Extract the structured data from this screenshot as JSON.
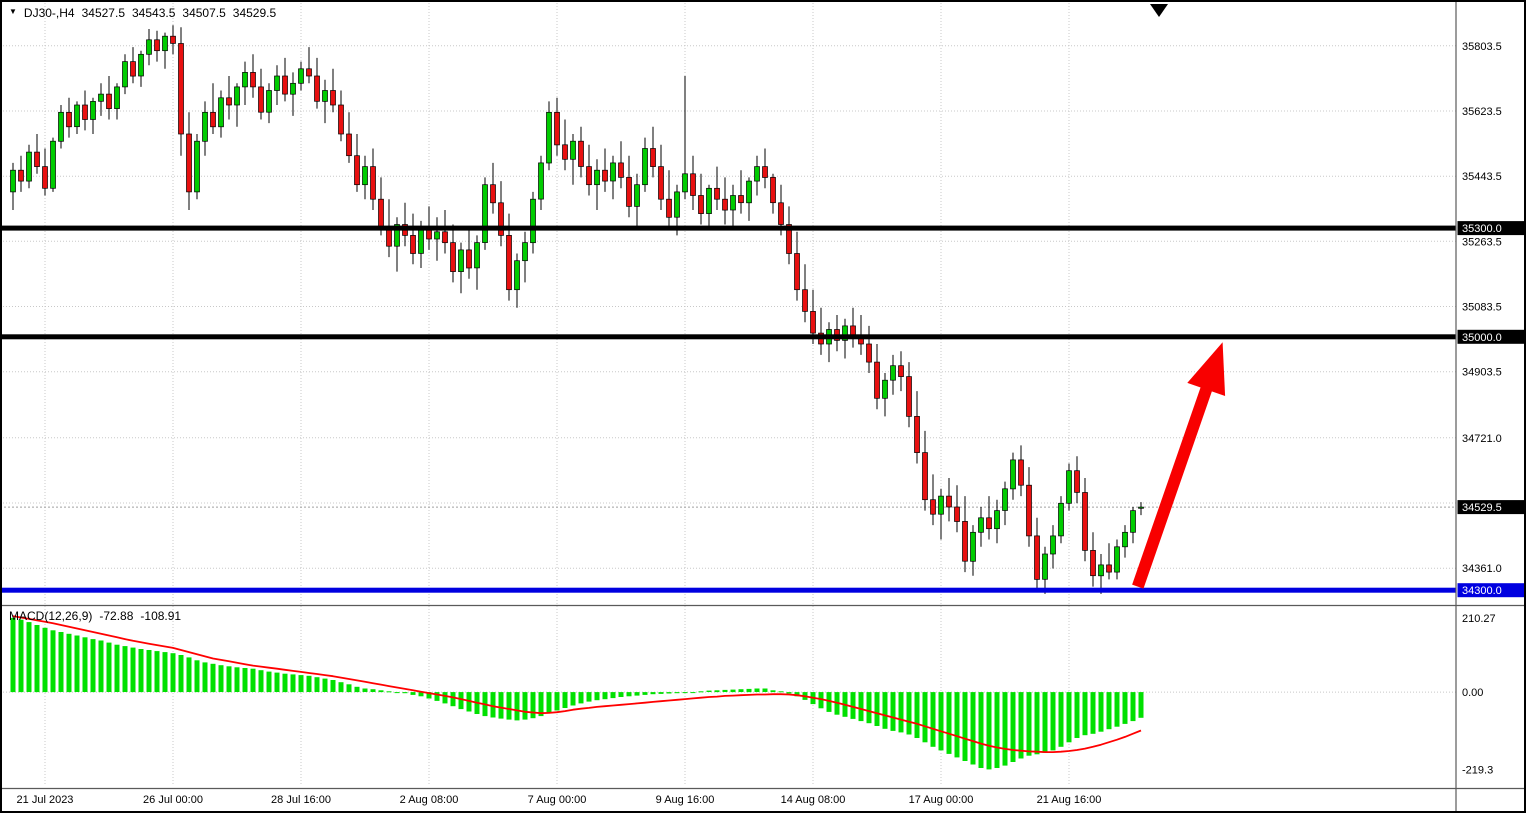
{
  "header": {
    "symbol_period": "DJ30-,H4",
    "open": "34527.5",
    "high": "34543.5",
    "low": "34507.5",
    "close": "34529.5"
  },
  "macd_header": {
    "label": "MACD(12,26,9)",
    "main_value": "-72.88",
    "signal_value": "-108.91"
  },
  "colors": {
    "up": "#00CC00",
    "down": "#E81010",
    "wick": "#000000",
    "grid": "#C8C8C8",
    "macd_bar": "#00E000",
    "macd_signal": "#FF0000",
    "arrow": "#F80000",
    "level_black": "#000000",
    "level_blue": "#0000E0",
    "current_line": "#A0A0A0",
    "badge_bg": "#000000",
    "badge_text": "#FFFFFF"
  },
  "chart_data": {
    "type": "candlestick",
    "symbol": "DJ30-",
    "timeframe": "H4",
    "title": "DJ30-,H4",
    "grid": true,
    "price_axis": {
      "range_top": 35930,
      "range_bottom": 34262,
      "ticks": [
        {
          "value": 35803.5,
          "label": "35803.5"
        },
        {
          "value": 35623.5,
          "label": "35623.5"
        },
        {
          "value": 35443.5,
          "label": "35443.5"
        },
        {
          "value": 35263.5,
          "label": "35263.5"
        },
        {
          "value": 35083.5,
          "label": "35083.5"
        },
        {
          "value": 34903.5,
          "label": "34903.5"
        },
        {
          "value": 34721.0,
          "label": "34721.0"
        },
        {
          "value": 34541.0,
          "label": ""
        },
        {
          "value": 34361.0,
          "label": "34361.0"
        }
      ]
    },
    "current_price": {
      "value": 34529.5,
      "label": "34529.5"
    },
    "levels": [
      {
        "price": 35300.0,
        "label": "35300.0",
        "color": "#000000",
        "width": 5
      },
      {
        "price": 35000.0,
        "label": "35000.0",
        "color": "#000000",
        "width": 5
      },
      {
        "price": 34300.0,
        "label": "34300.0",
        "color": "#0000E0",
        "width": 5
      }
    ],
    "time_axis": {
      "labels": [
        {
          "index": 4,
          "label": "21 Jul 2023"
        },
        {
          "index": 20,
          "label": "26 Jul 00:00"
        },
        {
          "index": 36,
          "label": "28 Jul 16:00"
        },
        {
          "index": 52,
          "label": "2 Aug 08:00"
        },
        {
          "index": 68,
          "label": "7 Aug 00:00"
        },
        {
          "index": 84,
          "label": "9 Aug 16:00"
        },
        {
          "index": 100,
          "label": "14 Aug 08:00"
        },
        {
          "index": 116,
          "label": "17 Aug 00:00"
        },
        {
          "index": 132,
          "label": "21 Aug 16:00"
        }
      ]
    },
    "arrow_annotation": {
      "from_index": 140.6,
      "from_price": 34310,
      "to_index": 151.2,
      "to_price": 34985
    },
    "candles": [
      [
        35400,
        35480,
        35350,
        35460
      ],
      [
        35460,
        35500,
        35400,
        35430
      ],
      [
        35430,
        35530,
        35410,
        35510
      ],
      [
        35510,
        35560,
        35450,
        35470
      ],
      [
        35470,
        35520,
        35390,
        35410
      ],
      [
        35410,
        35550,
        35400,
        35540
      ],
      [
        35540,
        35640,
        35520,
        35620
      ],
      [
        35620,
        35660,
        35550,
        35580
      ],
      [
        35580,
        35650,
        35560,
        35640
      ],
      [
        35640,
        35680,
        35570,
        35600
      ],
      [
        35600,
        35660,
        35560,
        35650
      ],
      [
        35650,
        35700,
        35610,
        35670
      ],
      [
        35670,
        35720,
        35600,
        35630
      ],
      [
        35630,
        35700,
        35600,
        35690
      ],
      [
        35690,
        35780,
        35670,
        35760
      ],
      [
        35760,
        35800,
        35700,
        35720
      ],
      [
        35720,
        35790,
        35690,
        35780
      ],
      [
        35780,
        35850,
        35750,
        35820
      ],
      [
        35820,
        35845,
        35760,
        35790
      ],
      [
        35790,
        35840,
        35740,
        35830
      ],
      [
        35830,
        35860,
        35780,
        35810
      ],
      [
        35810,
        35855,
        35500,
        35560
      ],
      [
        35560,
        35620,
        35350,
        35400
      ],
      [
        35400,
        35560,
        35380,
        35540
      ],
      [
        35540,
        35650,
        35500,
        35620
      ],
      [
        35620,
        35700,
        35560,
        35580
      ],
      [
        35580,
        35680,
        35550,
        35660
      ],
      [
        35660,
        35720,
        35600,
        35640
      ],
      [
        35640,
        35700,
        35580,
        35690
      ],
      [
        35690,
        35760,
        35640,
        35730
      ],
      [
        35730,
        35780,
        35660,
        35690
      ],
      [
        35690,
        35740,
        35600,
        35620
      ],
      [
        35620,
        35700,
        35590,
        35680
      ],
      [
        35680,
        35750,
        35640,
        35720
      ],
      [
        35720,
        35770,
        35650,
        35670
      ],
      [
        35670,
        35730,
        35610,
        35700
      ],
      [
        35700,
        35760,
        35680,
        35740
      ],
      [
        35740,
        35800,
        35700,
        35720
      ],
      [
        35720,
        35770,
        35630,
        35650
      ],
      [
        35650,
        35710,
        35590,
        35680
      ],
      [
        35680,
        35740,
        35620,
        35640
      ],
      [
        35640,
        35680,
        35540,
        35560
      ],
      [
        35560,
        35620,
        35480,
        35500
      ],
      [
        35500,
        35560,
        35400,
        35420
      ],
      [
        35420,
        35500,
        35380,
        35470
      ],
      [
        35470,
        35520,
        35350,
        35380
      ],
      [
        35380,
        35440,
        35280,
        35300
      ],
      [
        35300,
        35380,
        35220,
        35250
      ],
      [
        35250,
        35330,
        35180,
        35310
      ],
      [
        35310,
        35370,
        35250,
        35280
      ],
      [
        35280,
        35340,
        35200,
        35230
      ],
      [
        35230,
        35320,
        35190,
        35300
      ],
      [
        35300,
        35360,
        35240,
        35270
      ],
      [
        35270,
        35330,
        35210,
        35290
      ],
      [
        35290,
        35350,
        35230,
        35260
      ],
      [
        35260,
        35310,
        35150,
        35180
      ],
      [
        35180,
        35260,
        35120,
        35240
      ],
      [
        35240,
        35300,
        35160,
        35190
      ],
      [
        35190,
        35280,
        35130,
        35260
      ],
      [
        35260,
        35440,
        35240,
        35420
      ],
      [
        35420,
        35480,
        35340,
        35370
      ],
      [
        35370,
        35430,
        35250,
        35280
      ],
      [
        35280,
        35340,
        35100,
        35130
      ],
      [
        35130,
        35230,
        35080,
        35210
      ],
      [
        35210,
        35290,
        35150,
        35260
      ],
      [
        35260,
        35400,
        35230,
        35380
      ],
      [
        35380,
        35500,
        35350,
        35480
      ],
      [
        35480,
        35650,
        35460,
        35620
      ],
      [
        35620,
        35660,
        35500,
        35530
      ],
      [
        35530,
        35600,
        35460,
        35490
      ],
      [
        35490,
        35560,
        35420,
        35540
      ],
      [
        35540,
        35580,
        35440,
        35470
      ],
      [
        35470,
        35530,
        35390,
        35420
      ],
      [
        35420,
        35490,
        35350,
        35460
      ],
      [
        35460,
        35520,
        35400,
        35430
      ],
      [
        35430,
        35500,
        35380,
        35480
      ],
      [
        35480,
        35540,
        35410,
        35440
      ],
      [
        35440,
        35500,
        35330,
        35360
      ],
      [
        35360,
        35450,
        35300,
        35420
      ],
      [
        35420,
        35550,
        35400,
        35520
      ],
      [
        35520,
        35580,
        35440,
        35470
      ],
      [
        35470,
        35530,
        35350,
        35380
      ],
      [
        35380,
        35460,
        35300,
        35330
      ],
      [
        35330,
        35420,
        35280,
        35400
      ],
      [
        35400,
        35720,
        35380,
        35450
      ],
      [
        35450,
        35500,
        35350,
        35390
      ],
      [
        35390,
        35450,
        35310,
        35340
      ],
      [
        35340,
        35420,
        35300,
        35410
      ],
      [
        35410,
        35470,
        35350,
        35380
      ],
      [
        35380,
        35440,
        35310,
        35350
      ],
      [
        35350,
        35420,
        35300,
        35390
      ],
      [
        35390,
        35460,
        35340,
        35370
      ],
      [
        35370,
        35440,
        35320,
        35430
      ],
      [
        35430,
        35500,
        35390,
        35470
      ],
      [
        35470,
        35520,
        35410,
        35440
      ],
      [
        35440,
        35450,
        35340,
        35370
      ],
      [
        35370,
        35420,
        35280,
        35310
      ],
      [
        35310,
        35360,
        35200,
        35230
      ],
      [
        35230,
        35290,
        35100,
        35130
      ],
      [
        35130,
        35200,
        35040,
        35070
      ],
      [
        35070,
        35130,
        34980,
        35010
      ],
      [
        35010,
        35080,
        34950,
        34980
      ],
      [
        34980,
        35040,
        34930,
        35020
      ],
      [
        35020,
        35060,
        34960,
        34990
      ],
      [
        34990,
        35050,
        34940,
        35030
      ],
      [
        35030,
        35080,
        34970,
        35000
      ],
      [
        35000,
        35060,
        34950,
        34980
      ],
      [
        34980,
        35030,
        34900,
        34930
      ],
      [
        34930,
        34980,
        34800,
        34830
      ],
      [
        34830,
        34900,
        34780,
        34880
      ],
      [
        34880,
        34950,
        34840,
        34920
      ],
      [
        34920,
        34960,
        34850,
        34890
      ],
      [
        34890,
        34930,
        34750,
        34780
      ],
      [
        34780,
        34850,
        34650,
        34680
      ],
      [
        34680,
        34740,
        34520,
        34550
      ],
      [
        34550,
        34620,
        34480,
        34510
      ],
      [
        34510,
        34580,
        34440,
        34560
      ],
      [
        34560,
        34610,
        34490,
        34530
      ],
      [
        34530,
        34590,
        34460,
        34490
      ],
      [
        34490,
        34560,
        34350,
        34380
      ],
      [
        34380,
        34480,
        34340,
        34460
      ],
      [
        34460,
        34530,
        34420,
        34500
      ],
      [
        34500,
        34560,
        34440,
        34470
      ],
      [
        34470,
        34550,
        34430,
        34520
      ],
      [
        34520,
        34600,
        34480,
        34580
      ],
      [
        34580,
        34680,
        34550,
        34660
      ],
      [
        34660,
        34700,
        34560,
        34590
      ],
      [
        34590,
        34640,
        34420,
        34450
      ],
      [
        34450,
        34500,
        34300,
        34330
      ],
      [
        34330,
        34420,
        34290,
        34400
      ],
      [
        34400,
        34480,
        34360,
        34450
      ],
      [
        34450,
        34560,
        34430,
        34540
      ],
      [
        34540,
        34650,
        34520,
        34630
      ],
      [
        34630,
        34670,
        34540,
        34570
      ],
      [
        34570,
        34610,
        34380,
        34410
      ],
      [
        34410,
        34460,
        34310,
        34340
      ],
      [
        34340,
        34400,
        34290,
        34370
      ],
      [
        34370,
        34430,
        34330,
        34350
      ],
      [
        34350,
        34440,
        34330,
        34420
      ],
      [
        34420,
        34480,
        34390,
        34460
      ],
      [
        34460,
        34530,
        34430,
        34520
      ],
      [
        34527.5,
        34543.5,
        34507.5,
        34529.5
      ]
    ],
    "macd": {
      "params": "12,26,9",
      "range_top": 238,
      "range_bottom": -266,
      "ticks": [
        {
          "value": 210.27,
          "label": "210.27"
        },
        {
          "value": 0,
          "label": "0.00"
        },
        {
          "value": -219.3,
          "label": "-219.3"
        }
      ],
      "histogram": [
        210,
        205,
        198,
        190,
        182,
        175,
        170,
        165,
        160,
        155,
        150,
        146,
        140,
        134,
        130,
        126,
        122,
        119,
        116,
        113,
        110,
        105,
        98,
        90,
        84,
        80,
        76,
        73,
        70,
        68,
        66,
        62,
        58,
        55,
        52,
        50,
        48,
        46,
        42,
        38,
        34,
        28,
        22,
        15,
        10,
        8,
        5,
        2,
        0,
        -3,
        -8,
        -12,
        -18,
        -25,
        -32,
        -40,
        -48,
        -55,
        -62,
        -68,
        -72,
        -75,
        -78,
        -80,
        -78,
        -74,
        -68,
        -60,
        -52,
        -45,
        -38,
        -32,
        -27,
        -23,
        -20,
        -17,
        -14,
        -12,
        -10,
        -8,
        -6,
        -5,
        -4,
        -3,
        -2,
        0,
        2,
        4,
        5,
        6,
        7,
        8,
        9,
        10,
        10,
        5,
        2,
        -4,
        -12,
        -22,
        -34,
        -46,
        -56,
        -64,
        -70,
        -76,
        -82,
        -88,
        -96,
        -104,
        -110,
        -114,
        -120,
        -130,
        -142,
        -155,
        -165,
        -175,
        -185,
        -195,
        -205,
        -215,
        -219,
        -215,
        -208,
        -198,
        -188,
        -180,
        -176,
        -172,
        -165,
        -155,
        -142,
        -130,
        -122,
        -118,
        -112,
        -105,
        -98,
        -90,
        -82,
        -72.88
      ],
      "signal": [
        215,
        211,
        207,
        203,
        199,
        195,
        190,
        185,
        180,
        175,
        170,
        165,
        160,
        155,
        150,
        145,
        141,
        137,
        133,
        129,
        125,
        119,
        113,
        107,
        101,
        95,
        91,
        87,
        83,
        79,
        75,
        72,
        69,
        66,
        63,
        60,
        57,
        54,
        51,
        48,
        45,
        41,
        37,
        33,
        29,
        25,
        21,
        17,
        13,
        9,
        5,
        1,
        -3,
        -7,
        -11,
        -15,
        -20,
        -25,
        -30,
        -35,
        -40,
        -44,
        -48,
        -52,
        -56,
        -58,
        -60,
        -59,
        -57,
        -54,
        -50,
        -47,
        -45,
        -42,
        -40,
        -38,
        -36,
        -34,
        -32,
        -30,
        -28,
        -26,
        -24,
        -22,
        -20,
        -18,
        -16,
        -14,
        -13,
        -11,
        -10,
        -9,
        -8,
        -7,
        -7,
        -6,
        -6,
        -7,
        -9,
        -12,
        -16,
        -20,
        -25,
        -30,
        -36,
        -42,
        -48,
        -54,
        -60,
        -66,
        -72,
        -78,
        -84,
        -90,
        -97,
        -104,
        -111,
        -118,
        -125,
        -132,
        -139,
        -146,
        -152,
        -157,
        -161,
        -164,
        -166,
        -168,
        -169,
        -170,
        -170,
        -169,
        -167,
        -164,
        -160,
        -155,
        -149,
        -142,
        -135,
        -127,
        -118,
        -108.91
      ]
    }
  }
}
